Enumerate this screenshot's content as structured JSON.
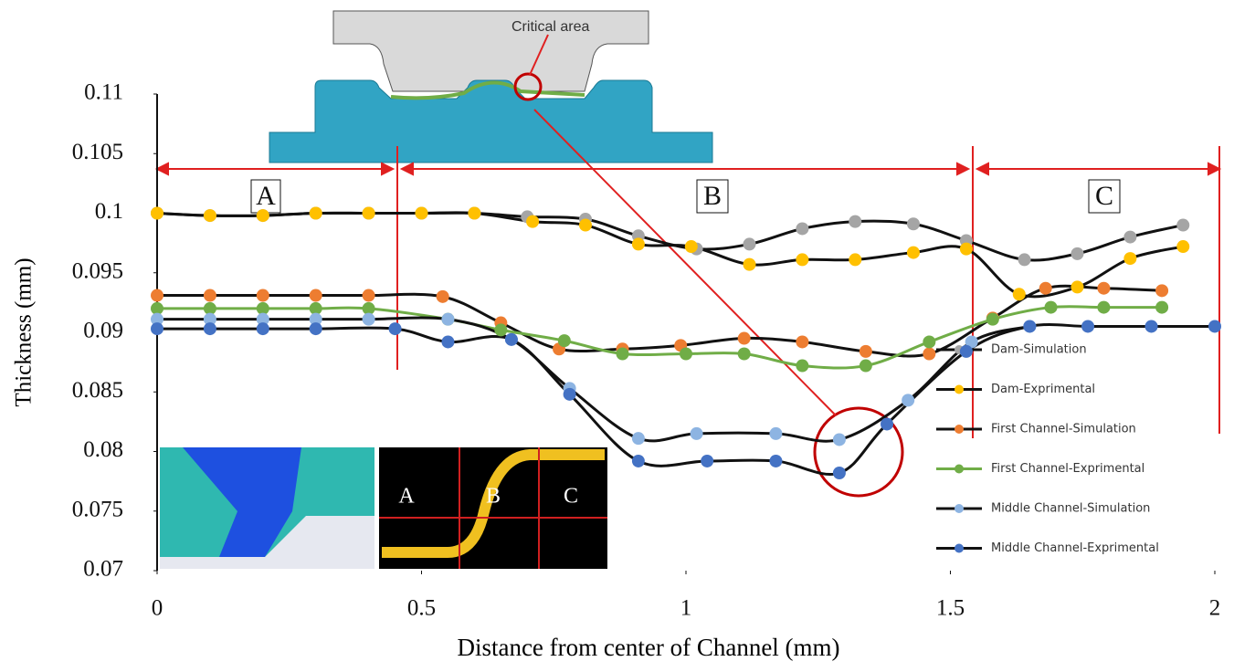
{
  "chart_data": {
    "type": "line",
    "x_label": "Distance from center of Channel (mm)",
    "y_label": "Thickness (mm)",
    "xlim": [
      0,
      2
    ],
    "xticks": [
      0,
      0.5,
      1,
      1.5,
      2
    ],
    "ylim": [
      0.07,
      0.11
    ],
    "yticks": [
      0.07,
      0.075,
      0.08,
      0.085,
      0.09,
      0.095,
      0.1,
      0.105,
      0.11
    ],
    "annotations": [
      "Critical area",
      "A",
      "B",
      "C",
      "A",
      "B",
      "C"
    ],
    "series": [
      {
        "name": "Dam-Simulation",
        "color": "#a5a5a5",
        "line_color": "#111111",
        "x": [
          0,
          0.1,
          0.2,
          0.3,
          0.4,
          0.5,
          0.6,
          0.7,
          0.81,
          0.91,
          1.02,
          1.12,
          1.22,
          1.32,
          1.43,
          1.53,
          1.64,
          1.74,
          1.84,
          1.94
        ],
        "values": [
          0.1,
          0.0998,
          0.0998,
          0.1,
          0.1,
          0.1,
          0.1,
          0.0997,
          0.0995,
          0.0981,
          0.097,
          0.0974,
          0.0987,
          0.0993,
          0.0991,
          0.0977,
          0.0961,
          0.0966,
          0.098,
          0.099
        ]
      },
      {
        "name": "Dam-Exprimental",
        "color": "#ffc000",
        "line_color": "#111111",
        "x": [
          0,
          0.1,
          0.2,
          0.3,
          0.4,
          0.5,
          0.6,
          0.71,
          0.81,
          0.91,
          1.01,
          1.12,
          1.22,
          1.32,
          1.43,
          1.53,
          1.63,
          1.74,
          1.84,
          1.94
        ],
        "values": [
          0.1,
          0.0998,
          0.0998,
          0.1,
          0.1,
          0.1,
          0.1,
          0.0993,
          0.099,
          0.0974,
          0.0972,
          0.0957,
          0.0961,
          0.0961,
          0.0967,
          0.097,
          0.0932,
          0.0938,
          0.0962,
          0.0972
        ]
      },
      {
        "name": "First Channel-Simulation",
        "color": "#ed7d31",
        "line_color": "#111111",
        "x": [
          0,
          0.1,
          0.2,
          0.3,
          0.4,
          0.54,
          0.65,
          0.76,
          0.88,
          0.99,
          1.11,
          1.22,
          1.34,
          1.46,
          1.58,
          1.68,
          1.79,
          1.9
        ],
        "values": [
          0.0931,
          0.0931,
          0.0931,
          0.0931,
          0.0931,
          0.093,
          0.0908,
          0.0886,
          0.0886,
          0.0889,
          0.0895,
          0.0892,
          0.0884,
          0.0882,
          0.0912,
          0.0937,
          0.0937,
          0.0935
        ]
      },
      {
        "name": "First Channel-Exprimental",
        "color": "#70ad47",
        "line_color": "#70ad47",
        "x": [
          0,
          0.1,
          0.2,
          0.3,
          0.4,
          0.55,
          0.65,
          0.77,
          0.88,
          1.0,
          1.11,
          1.22,
          1.34,
          1.46,
          1.58,
          1.69,
          1.79,
          1.9
        ],
        "values": [
          0.092,
          0.092,
          0.092,
          0.092,
          0.092,
          0.0911,
          0.0902,
          0.0893,
          0.0882,
          0.0882,
          0.0882,
          0.0872,
          0.0872,
          0.0892,
          0.0911,
          0.0921,
          0.0921,
          0.0921
        ]
      },
      {
        "name": "Middle Channel-Simulation",
        "color": "#8db4e2",
        "line_color": "#111111",
        "x": [
          0,
          0.1,
          0.2,
          0.3,
          0.4,
          0.55,
          0.67,
          0.78,
          0.91,
          1.02,
          1.17,
          1.29,
          1.42,
          1.54,
          1.65
        ],
        "values": [
          0.0911,
          0.0911,
          0.0911,
          0.0911,
          0.0911,
          0.0911,
          0.0894,
          0.0853,
          0.0811,
          0.0815,
          0.0815,
          0.081,
          0.0843,
          0.0892,
          0.0905
        ]
      },
      {
        "name": "Middle Channel-Exprimental",
        "color": "#4472c4",
        "line_color": "#111111",
        "x": [
          0,
          0.1,
          0.2,
          0.3,
          0.45,
          0.55,
          0.67,
          0.78,
          0.91,
          1.04,
          1.17,
          1.29,
          1.38,
          1.53,
          1.65,
          1.76,
          1.88,
          2.0
        ],
        "values": [
          0.0903,
          0.0903,
          0.0903,
          0.0903,
          0.0903,
          0.0892,
          0.0894,
          0.0848,
          0.0792,
          0.0792,
          0.0792,
          0.0782,
          0.0823,
          0.0884,
          0.0905,
          0.0905,
          0.0905,
          0.0905
        ]
      }
    ]
  }
}
